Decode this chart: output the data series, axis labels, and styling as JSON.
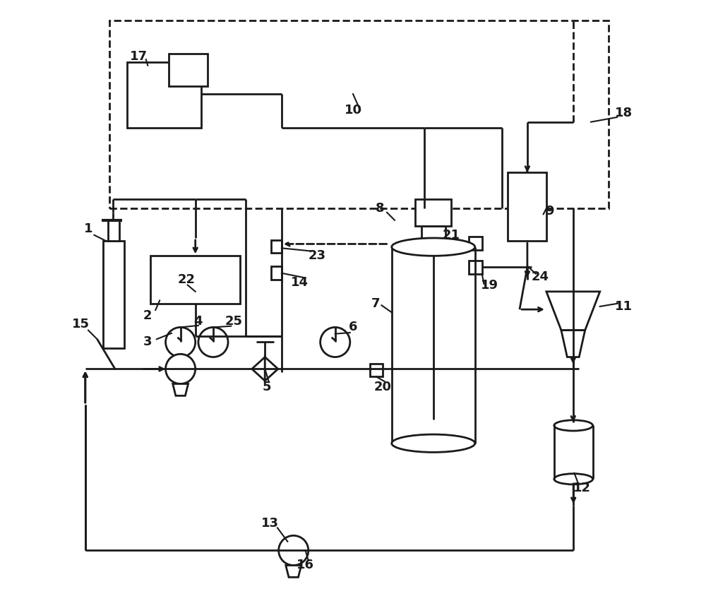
{
  "background": "#ffffff",
  "lc": "#1a1a1a",
  "lw": 2.0,
  "fig_w": 10.0,
  "fig_h": 8.51
}
